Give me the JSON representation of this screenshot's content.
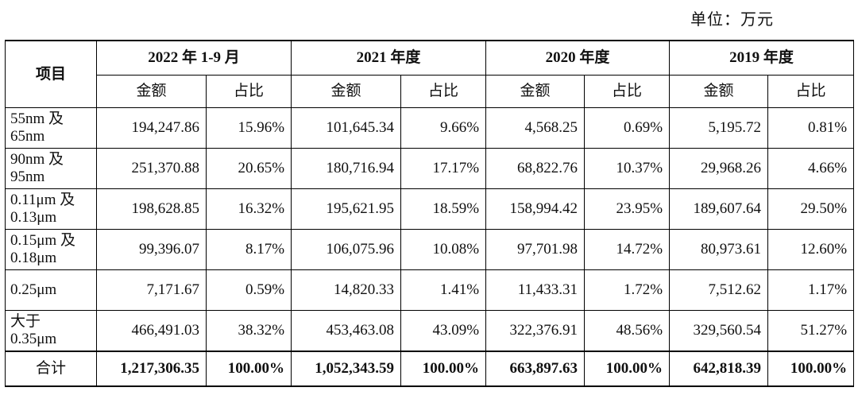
{
  "unit_label": "单位：万元",
  "header": {
    "item": "项目",
    "periods": [
      "2022 年 1-9 月",
      "2021 年度",
      "2020 年度",
      "2019 年度"
    ],
    "amount": "金额",
    "ratio": "占比"
  },
  "rows": [
    {
      "label_1": "55nm 及",
      "label_2": "65nm",
      "cells": [
        "194,247.86",
        "15.96%",
        "101,645.34",
        "9.66%",
        "4,568.25",
        "0.69%",
        "5,195.72",
        "0.81%"
      ]
    },
    {
      "label_1": "90nm 及",
      "label_2": "95nm",
      "cells": [
        "251,370.88",
        "20.65%",
        "180,716.94",
        "17.17%",
        "68,822.76",
        "10.37%",
        "29,968.26",
        "4.66%"
      ]
    },
    {
      "label_1": "0.11μm 及",
      "label_2": "0.13μm",
      "cells": [
        "198,628.85",
        "16.32%",
        "195,621.95",
        "18.59%",
        "158,994.42",
        "23.95%",
        "189,607.64",
        "29.50%"
      ]
    },
    {
      "label_1": "0.15μm 及",
      "label_2": "0.18μm",
      "cells": [
        "99,396.07",
        "8.17%",
        "106,075.96",
        "10.08%",
        "97,701.98",
        "14.72%",
        "80,973.61",
        "12.60%"
      ]
    },
    {
      "label_1": "0.25μm",
      "label_2": "",
      "cells": [
        "7,171.67",
        "0.59%",
        "14,820.33",
        "1.41%",
        "11,433.31",
        "1.72%",
        "7,512.62",
        "1.17%"
      ]
    },
    {
      "label_1": "大于",
      "label_2": "0.35μm",
      "cells": [
        "466,491.03",
        "38.32%",
        "453,463.08",
        "43.09%",
        "322,376.91",
        "48.56%",
        "329,560.54",
        "51.27%"
      ]
    }
  ],
  "total": {
    "label": "合计",
    "cells": [
      "1,217,306.35",
      "100.00%",
      "1,052,343.59",
      "100.00%",
      "663,897.63",
      "100.00%",
      "642,818.39",
      "100.00%"
    ]
  }
}
